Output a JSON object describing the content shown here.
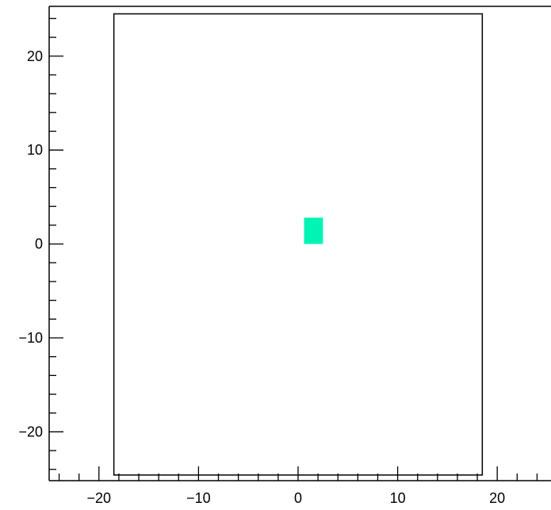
{
  "chart_data": {
    "type": "heatmap",
    "title": "",
    "xlabel": "",
    "ylabel": "",
    "xlim": [
      -25,
      25.4
    ],
    "ylim": [
      -25.2,
      25.3
    ],
    "grid": false,
    "x_ticks": [
      {
        "value": -20,
        "label": "−20"
      },
      {
        "value": -10,
        "label": "−10"
      },
      {
        "value": 0,
        "label": "0"
      },
      {
        "value": 10,
        "label": "10"
      },
      {
        "value": 20,
        "label": "20"
      }
    ],
    "y_ticks": [
      {
        "value": 20,
        "label": "20"
      },
      {
        "value": 10,
        "label": "10"
      },
      {
        "value": 0,
        "label": "0"
      },
      {
        "value": -10,
        "label": "−10"
      },
      {
        "value": -20,
        "label": "−20"
      }
    ],
    "x_minor_step": 2,
    "y_minor_step": 2,
    "outline": {
      "x": [
        -18.5,
        18.5
      ],
      "y": [
        -24.6,
        24.5
      ]
    },
    "cells": [
      {
        "x0": 0.6,
        "x1": 2.5,
        "y0": 0.0,
        "y1": 2.8,
        "color": "#00f5b4"
      }
    ]
  }
}
